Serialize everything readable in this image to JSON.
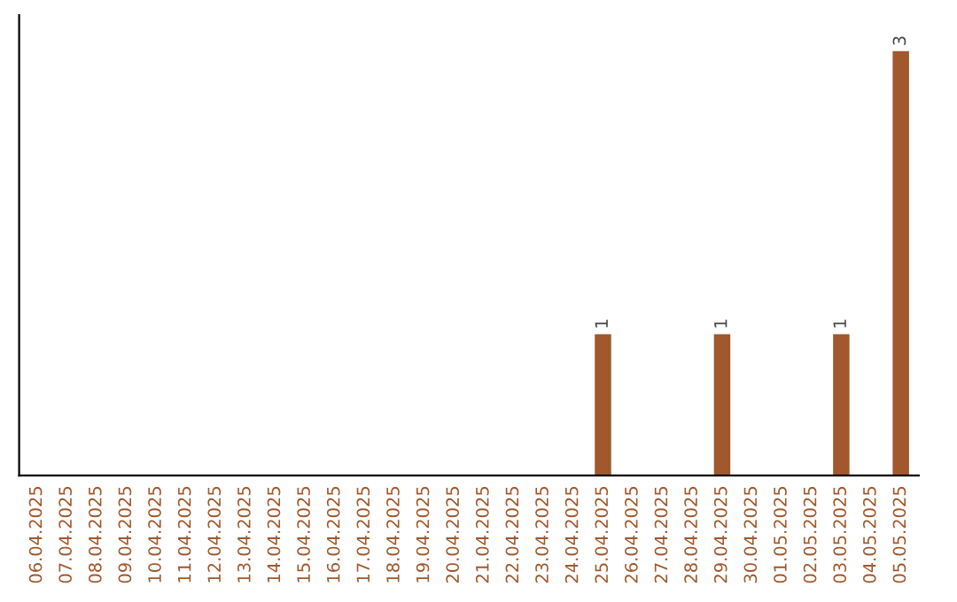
{
  "chart_data": {
    "type": "bar",
    "categories": [
      "06.04.2025",
      "07.04.2025",
      "08.04.2025",
      "09.04.2025",
      "10.04.2025",
      "11.04.2025",
      "12.04.2025",
      "13.04.2025",
      "14.04.2025",
      "15.04.2025",
      "16.04.2025",
      "17.04.2025",
      "18.04.2025",
      "19.04.2025",
      "20.04.2025",
      "21.04.2025",
      "22.04.2025",
      "23.04.2025",
      "24.04.2025",
      "25.04.2025",
      "26.04.2025",
      "27.04.2025",
      "28.04.2025",
      "29.04.2025",
      "30.04.2025",
      "01.05.2025",
      "02.05.2025",
      "03.05.2025",
      "04.05.2025",
      "05.05.2025"
    ],
    "values": [
      null,
      null,
      null,
      null,
      null,
      null,
      null,
      null,
      null,
      null,
      null,
      null,
      null,
      null,
      null,
      null,
      null,
      null,
      null,
      1,
      null,
      null,
      null,
      1,
      null,
      null,
      null,
      1,
      null,
      3
    ],
    "value_labels": [
      null,
      null,
      null,
      null,
      null,
      null,
      null,
      null,
      null,
      null,
      null,
      null,
      null,
      null,
      null,
      null,
      null,
      null,
      null,
      "1",
      null,
      null,
      null,
      "1",
      null,
      null,
      null,
      "1",
      null,
      "3"
    ],
    "color": "#a0582c",
    "tick_labels": "x",
    "grid": false,
    "legend": false
  }
}
